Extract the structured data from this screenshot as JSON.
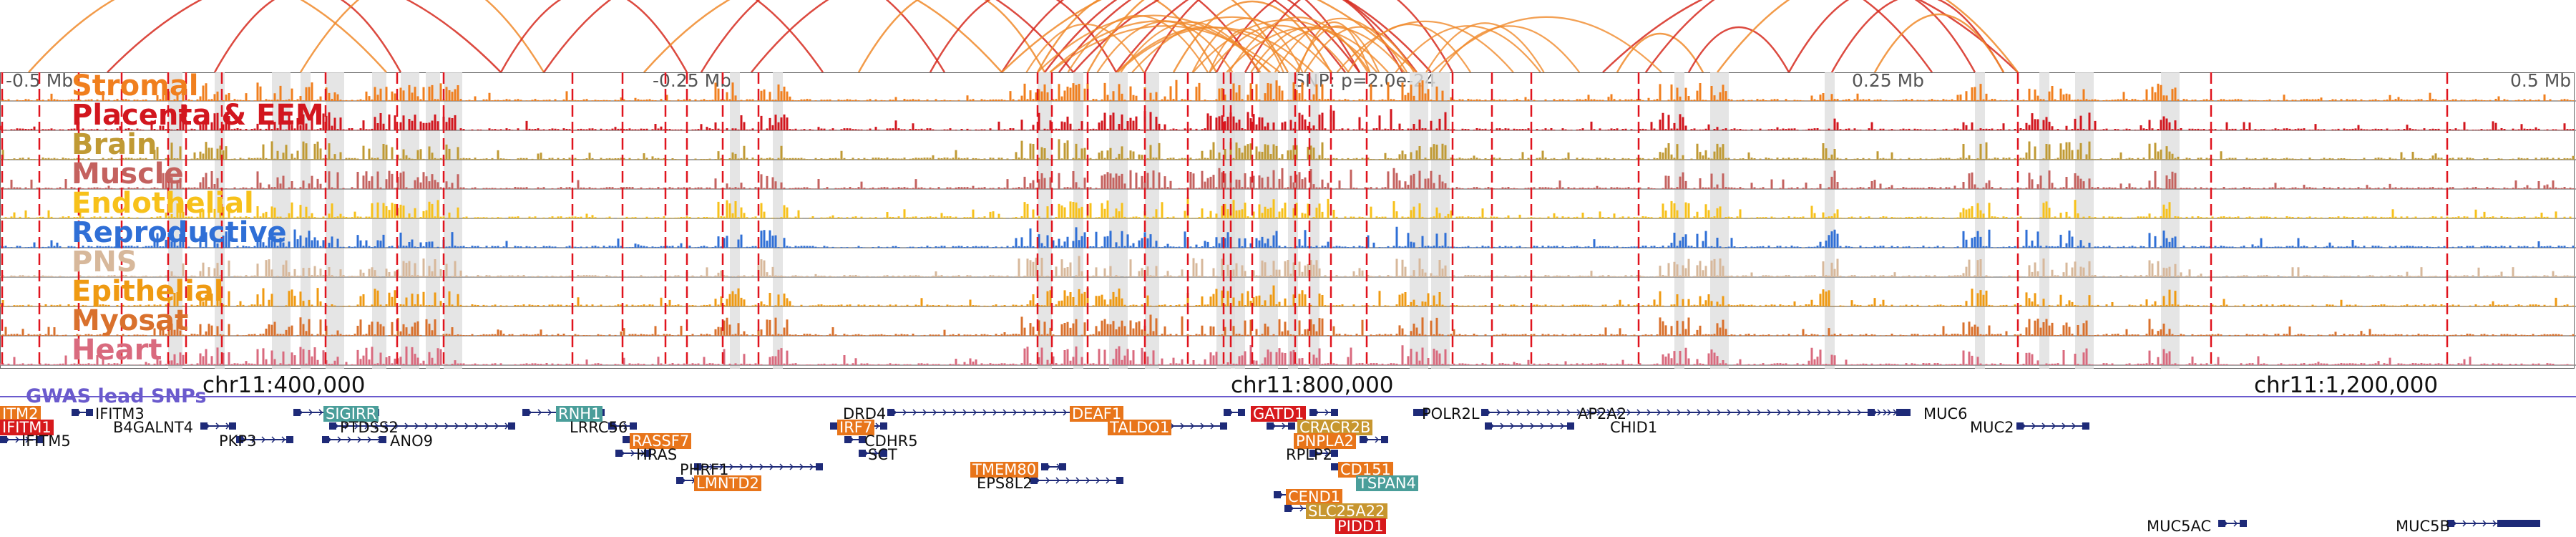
{
  "scale_labels": [
    "-0.5 Mb",
    "-0.25 Mb",
    "SNP: p=2.0e-24",
    "0.25 Mb",
    "0.5 Mb"
  ],
  "tracks": [
    {
      "label": "Stromal",
      "color": "#f07f1e"
    },
    {
      "label": "Placenta & EEM",
      "color": "#d2161e"
    },
    {
      "label": "Brain",
      "color": "#c09a34"
    },
    {
      "label": "Muscle",
      "color": "#c4625f"
    },
    {
      "label": "Endothelial",
      "color": "#f7c11a"
    },
    {
      "label": "Reproductive",
      "color": "#2f6fd6"
    },
    {
      "label": "PNS",
      "color": "#d7b89b"
    },
    {
      "label": "Epithelial",
      "color": "#ef9a12"
    },
    {
      "label": "Myosat",
      "color": "#d9712d"
    },
    {
      "label": "Heart",
      "color": "#d96a7e"
    }
  ],
  "coordinates": [
    "chr11:400,000",
    "chr11:800,000",
    "chr11:1,200,000"
  ],
  "gwas_label": "GWAS lead SNPs",
  "colors": {
    "arc_main": "#d62a1e",
    "arc_alt": "#f08a2a",
    "peak_line": "#e0141e",
    "shade": "#dedede",
    "gene_structure": "#1e2a78",
    "gwas": "#6a5acd"
  },
  "genes": [
    {
      "name": "ITM2",
      "box": "#e8751a"
    },
    {
      "name": "IFITM3",
      "box": null
    },
    {
      "name": "IFITM1",
      "box": "#d7191c"
    },
    {
      "name": "IFITM5",
      "box": null
    },
    {
      "name": "B4GALNT4",
      "box": null
    },
    {
      "name": "SIGIRR",
      "box": "#4a9e9a"
    },
    {
      "name": "PTDSS2",
      "box": null
    },
    {
      "name": "PKP3",
      "box": null
    },
    {
      "name": "ANO9",
      "box": null
    },
    {
      "name": "RNH1",
      "box": "#4a9e9a"
    },
    {
      "name": "LRRC56",
      "box": null
    },
    {
      "name": "RASSF7",
      "box": "#e8751a"
    },
    {
      "name": "HRAS",
      "box": null
    },
    {
      "name": "PHRF1",
      "box": null
    },
    {
      "name": "LMNTD2",
      "box": "#e8751a"
    },
    {
      "name": "DRD4",
      "box": null
    },
    {
      "name": "IRF7",
      "box": "#e8751a"
    },
    {
      "name": "CDHR5",
      "box": null
    },
    {
      "name": "SCT",
      "box": null
    },
    {
      "name": "DEAF1",
      "box": "#e8751a"
    },
    {
      "name": "TALDO1",
      "box": "#e8751a"
    },
    {
      "name": "TMEM80",
      "box": "#e8751a"
    },
    {
      "name": "EPS8L2",
      "box": null
    },
    {
      "name": "GATD1",
      "box": "#d7191c"
    },
    {
      "name": "CRACR2B",
      "box": "#c7962f"
    },
    {
      "name": "PNPLA2",
      "box": "#e8751a"
    },
    {
      "name": "RPLP2",
      "box": null
    },
    {
      "name": "CD151",
      "box": "#e8751a"
    },
    {
      "name": "TSPAN4",
      "box": "#4a9e9a"
    },
    {
      "name": "CEND1",
      "box": "#e8751a"
    },
    {
      "name": "SLC25A22",
      "box": "#c7962f"
    },
    {
      "name": "PIDD1",
      "box": "#d7191c"
    },
    {
      "name": "POLR2L",
      "box": null
    },
    {
      "name": "AP2A2",
      "box": null
    },
    {
      "name": "CHID1",
      "box": null
    },
    {
      "name": "MUC6",
      "box": null
    },
    {
      "name": "MUC2",
      "box": null
    },
    {
      "name": "MUC5AC",
      "box": null
    },
    {
      "name": "MUC5B",
      "box": null
    }
  ]
}
